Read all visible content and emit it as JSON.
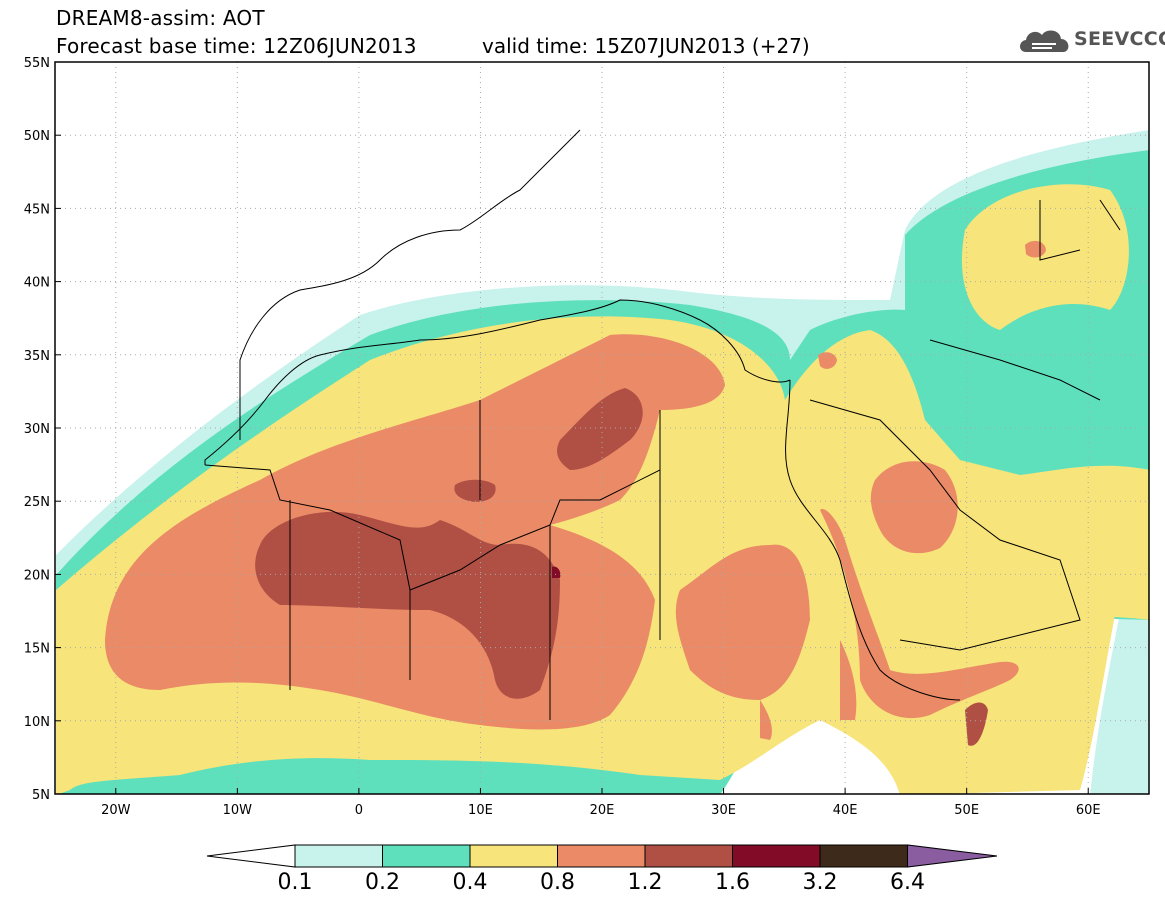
{
  "header": {
    "title_line1": "DREAM8-assim: AOT",
    "title_line2": "Forecast base time: 12Z06JUN2013",
    "valid_time": "valid time: 15Z07JUN2013 (+27)",
    "logo_text": "SEEVCCC"
  },
  "map": {
    "lon_range": [
      -25,
      65
    ],
    "lat_range": [
      5,
      55
    ],
    "lon_ticks": [
      "20W",
      "10W",
      "0",
      "10E",
      "20E",
      "30E",
      "40E",
      "50E",
      "60E"
    ],
    "lat_ticks": [
      "5N",
      "10N",
      "15N",
      "20N",
      "25N",
      "30N",
      "35N",
      "40N",
      "45N",
      "50N",
      "55N"
    ],
    "grid": "dotted"
  },
  "colorbar": {
    "labels": [
      "0.1",
      "0.2",
      "0.4",
      "0.8",
      "1.2",
      "1.6",
      "3.2",
      "6.4"
    ],
    "colors": [
      "#ffffff",
      "#c8f2ec",
      "#5fe0bc",
      "#f7e47a",
      "#ea8a66",
      "#b04f44",
      "#820c28",
      "#3e2a1a",
      "#8a5da0"
    ]
  },
  "colors": {
    "c01": "#c8f2ec",
    "c02": "#5fe0bc",
    "c04": "#f7e47a",
    "c08": "#ea8a66",
    "c12": "#b04f44",
    "c16": "#820c28"
  }
}
